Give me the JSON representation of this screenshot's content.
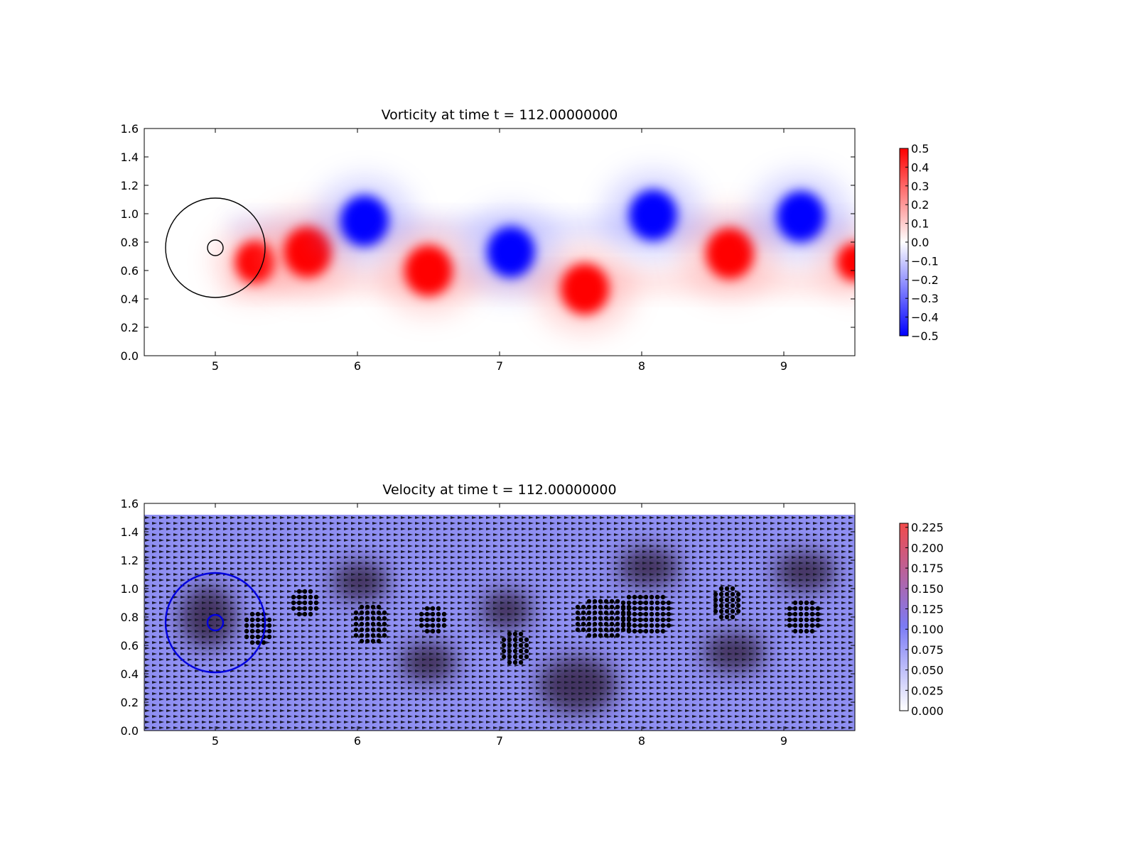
{
  "chart_data": [
    {
      "type": "heatmap",
      "title": "Vorticity at time t =   112.00000000",
      "xlabel": "",
      "ylabel": "",
      "xlim": [
        4.5,
        9.5
      ],
      "ylim": [
        0.0,
        1.6
      ],
      "xticks": [
        "5",
        "6",
        "7",
        "8",
        "9"
      ],
      "yticks": [
        "0.0",
        "0.2",
        "0.4",
        "0.6",
        "0.8",
        "1.0",
        "1.2",
        "1.4",
        "1.6"
      ],
      "colormap": {
        "low": "#0000ff",
        "mid": "#ffffff",
        "high": "#ff0000"
      },
      "colorbar": {
        "min": -0.5,
        "max": 0.5,
        "ticks": [
          "0.5",
          "0.4",
          "0.3",
          "0.2",
          "0.1",
          "0.0",
          "−0.1",
          "−0.2",
          "−0.3",
          "−0.4",
          "−0.5"
        ]
      },
      "circles": [
        {
          "cx": 5.0,
          "cy": 0.76,
          "r": 0.35,
          "color": "#000000"
        },
        {
          "cx": 5.0,
          "cy": 0.76,
          "r": 0.055,
          "color": "#000000"
        }
      ],
      "vortices": [
        {
          "x": 5.28,
          "y": 0.66,
          "sign": 1,
          "strength": 0.5
        },
        {
          "x": 5.65,
          "y": 0.73,
          "sign": 1,
          "strength": 0.6
        },
        {
          "x": 6.05,
          "y": 0.95,
          "sign": -1,
          "strength": 0.6
        },
        {
          "x": 6.5,
          "y": 0.6,
          "sign": 1,
          "strength": 0.6
        },
        {
          "x": 7.08,
          "y": 0.73,
          "sign": -1,
          "strength": 0.6
        },
        {
          "x": 7.6,
          "y": 0.47,
          "sign": 1,
          "strength": 0.6
        },
        {
          "x": 8.08,
          "y": 0.99,
          "sign": -1,
          "strength": 0.6
        },
        {
          "x": 8.62,
          "y": 0.72,
          "sign": 1,
          "strength": 0.6
        },
        {
          "x": 9.12,
          "y": 0.98,
          "sign": -1,
          "strength": 0.6
        },
        {
          "x": 9.5,
          "y": 0.66,
          "sign": 1,
          "strength": 0.45
        }
      ],
      "shear_layers": [
        {
          "x0": 5.1,
          "x1": 9.5,
          "y": 0.9,
          "sign": -1
        },
        {
          "x0": 5.1,
          "x1": 9.5,
          "y": 0.52,
          "sign": 1
        }
      ]
    },
    {
      "type": "heatmap",
      "title": "Velocity at time t =   112.00000000",
      "xlabel": "",
      "ylabel": "",
      "xlim": [
        4.5,
        9.5
      ],
      "ylim": [
        0.0,
        1.6
      ],
      "xticks": [
        "5",
        "6",
        "7",
        "8",
        "9"
      ],
      "yticks": [
        "0.0",
        "0.2",
        "0.4",
        "0.6",
        "0.8",
        "1.0",
        "1.2",
        "1.4",
        "1.6"
      ],
      "field_top": 1.52,
      "colormap": {
        "low": "#ffffff",
        "mid": "#7b7bf5",
        "high": "#f24b4b"
      },
      "colorbar": {
        "min": 0.0,
        "max": 0.23,
        "ticks": [
          "0.225",
          "0.200",
          "0.175",
          "0.150",
          "0.125",
          "0.100",
          "0.075",
          "0.050",
          "0.025",
          "0.000"
        ]
      },
      "circles": [
        {
          "cx": 5.0,
          "cy": 0.76,
          "r": 0.35,
          "color": "#0000dd"
        },
        {
          "cx": 5.0,
          "cy": 0.76,
          "r": 0.055,
          "color": "#0000dd"
        }
      ],
      "dark_regions": [
        {
          "x": 4.95,
          "y": 0.8,
          "rx": 0.2,
          "ry": 0.22
        },
        {
          "x": 6.02,
          "y": 1.05,
          "rx": 0.2,
          "ry": 0.14
        },
        {
          "x": 7.05,
          "y": 0.85,
          "rx": 0.18,
          "ry": 0.14
        },
        {
          "x": 6.5,
          "y": 0.48,
          "rx": 0.2,
          "ry": 0.14
        },
        {
          "x": 7.55,
          "y": 0.32,
          "rx": 0.28,
          "ry": 0.2
        },
        {
          "x": 8.05,
          "y": 1.15,
          "rx": 0.22,
          "ry": 0.14
        },
        {
          "x": 8.65,
          "y": 0.55,
          "rx": 0.22,
          "ry": 0.14
        },
        {
          "x": 9.15,
          "y": 1.12,
          "rx": 0.22,
          "ry": 0.14
        }
      ],
      "stagnation_clusters": [
        {
          "x": 5.3,
          "y": 0.73,
          "w": 0.2,
          "h": 0.22
        },
        {
          "x": 5.63,
          "y": 0.9,
          "w": 0.2,
          "h": 0.2
        },
        {
          "x": 6.08,
          "y": 0.76,
          "w": 0.22,
          "h": 0.26
        },
        {
          "x": 6.52,
          "y": 0.78,
          "w": 0.18,
          "h": 0.2
        },
        {
          "x": 7.1,
          "y": 0.58,
          "w": 0.18,
          "h": 0.24
        },
        {
          "x": 7.73,
          "y": 0.8,
          "w": 0.4,
          "h": 0.26
        },
        {
          "x": 8.03,
          "y": 0.82,
          "w": 0.36,
          "h": 0.28
        },
        {
          "x": 8.6,
          "y": 0.91,
          "w": 0.2,
          "h": 0.22
        },
        {
          "x": 9.13,
          "y": 0.8,
          "w": 0.22,
          "h": 0.24
        }
      ]
    }
  ]
}
